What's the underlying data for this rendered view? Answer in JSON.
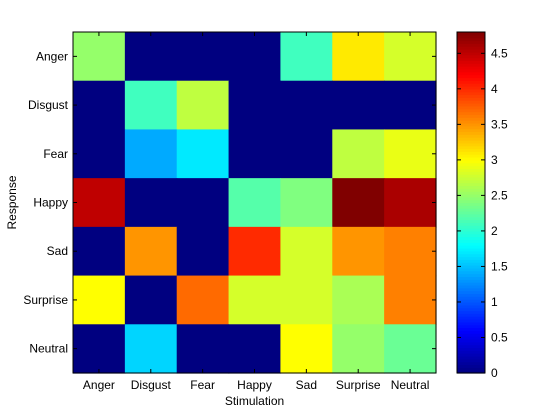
{
  "chart_data": {
    "type": "heatmap",
    "x_categories": [
      "Anger",
      "Disgust",
      "Fear",
      "Happy",
      "Sad",
      "Surprise",
      "Neutral"
    ],
    "y_categories": [
      "Anger",
      "Disgust",
      "Fear",
      "Happy",
      "Sad",
      "Surprise",
      "Neutral"
    ],
    "values": [
      [
        2.5,
        0,
        0,
        0,
        2.1,
        3.1,
        2.8
      ],
      [
        0,
        2.1,
        2.7,
        0,
        0,
        0,
        0
      ],
      [
        0,
        1.4,
        1.7,
        0,
        0,
        2.7,
        2.9
      ],
      [
        4.5,
        0,
        0,
        2.2,
        2.4,
        4.8,
        4.6
      ],
      [
        0,
        3.5,
        0,
        4.0,
        2.8,
        3.5,
        3.6
      ],
      [
        3.0,
        0,
        3.7,
        2.8,
        2.8,
        2.6,
        3.6
      ],
      [
        0,
        1.6,
        0,
        0,
        3.0,
        2.5,
        2.3
      ]
    ],
    "xlabel": "Stimulation",
    "ylabel": "Response",
    "colormap": "jet",
    "clim": [
      0,
      4.8
    ],
    "colorbar": {
      "ticks": [
        0,
        0.5,
        1,
        1.5,
        2,
        2.5,
        3,
        3.5,
        4,
        4.5
      ],
      "tick_labels": [
        "0",
        "0.5",
        "1",
        "1.5",
        "2",
        "2.5",
        "3",
        "3.5",
        "4",
        "4.5"
      ]
    }
  }
}
